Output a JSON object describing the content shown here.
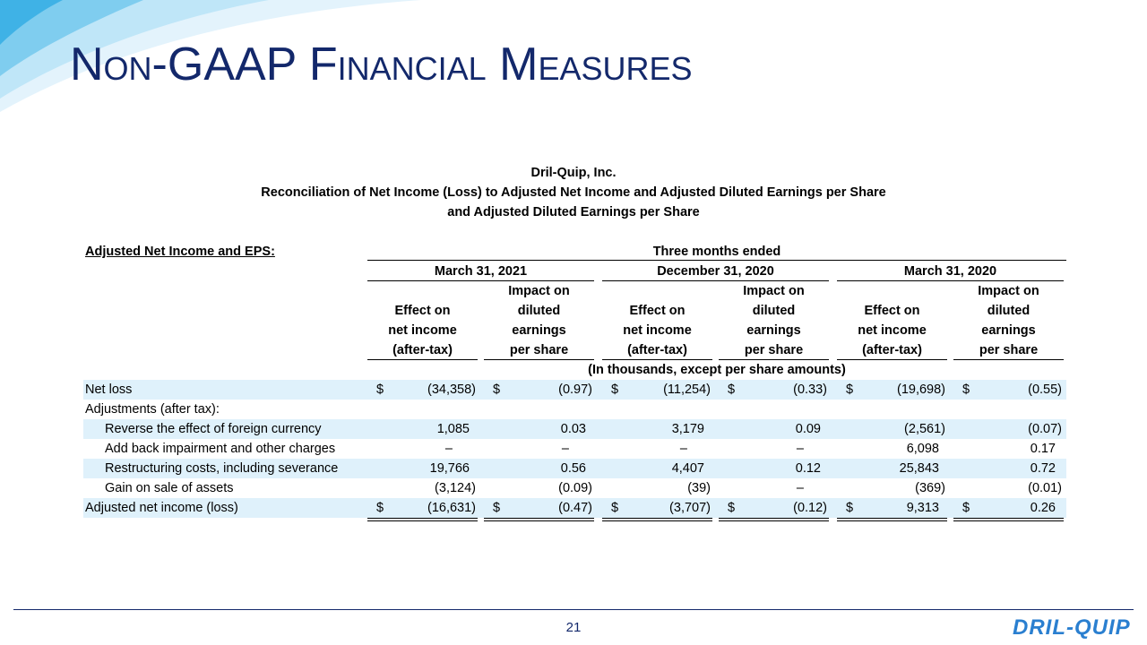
{
  "header": {
    "title": "Non-GAAP Financial Measures"
  },
  "table": {
    "company": "Dril-Quip, Inc.",
    "subtitle": [
      "Reconciliation of Net Income (Loss) to Adjusted Net Income and Adjusted Diluted Earnings per Share",
      "and Adjusted Diluted Earnings per Share"
    ],
    "section": "Adjusted Net Income and EPS:",
    "period_header": "Three months ended",
    "periods": [
      "March 31, 2021",
      "December 31, 2020",
      "March 31, 2020"
    ],
    "columns": [
      [
        "Effect on",
        "net income",
        "(after-tax)"
      ],
      [
        "Impact on",
        "diluted",
        "earnings",
        "per share"
      ]
    ],
    "units_note": "(In thousands, except per share amounts)",
    "currency_symbol": "$",
    "rows": [
      {
        "label": "Net loss",
        "cells": [
          "(34,358)",
          "(0.97)",
          "(11,254)",
          "(0.33)",
          "(19,698)",
          "(0.55)"
        ],
        "dollar": true,
        "shaded": true
      },
      {
        "label": "Adjustments (after tax):",
        "cells": []
      },
      {
        "label": "Reverse the effect of foreign currency",
        "cells": [
          "1,085",
          "0.03",
          "3,179",
          "0.09",
          "(2,561)",
          "(0.07)"
        ],
        "indent": true,
        "shaded": true
      },
      {
        "label": "Add back impairment and other charges",
        "cells": [
          "–",
          "–",
          "–",
          "–",
          "6,098",
          "0.17"
        ],
        "indent": true
      },
      {
        "label": "Restructuring costs, including severance",
        "cells": [
          "19,766",
          "0.56",
          "4,407",
          "0.12",
          "25,843",
          "0.72"
        ],
        "indent": true,
        "shaded": true
      },
      {
        "label": "Gain on sale of assets",
        "cells": [
          "(3,124)",
          "(0.09)",
          "(39)",
          "–",
          "(369)",
          "(0.01)"
        ],
        "indent": true,
        "rule": "single"
      },
      {
        "label": "Adjusted net income (loss)",
        "cells": [
          "(16,631)",
          "(0.47)",
          "(3,707)",
          "(0.12)",
          "9,313",
          "0.26"
        ],
        "dollar": true,
        "shaded": true,
        "rule": "double"
      }
    ]
  },
  "footer": {
    "page": "21",
    "logo": "DRIL-QUIP"
  }
}
